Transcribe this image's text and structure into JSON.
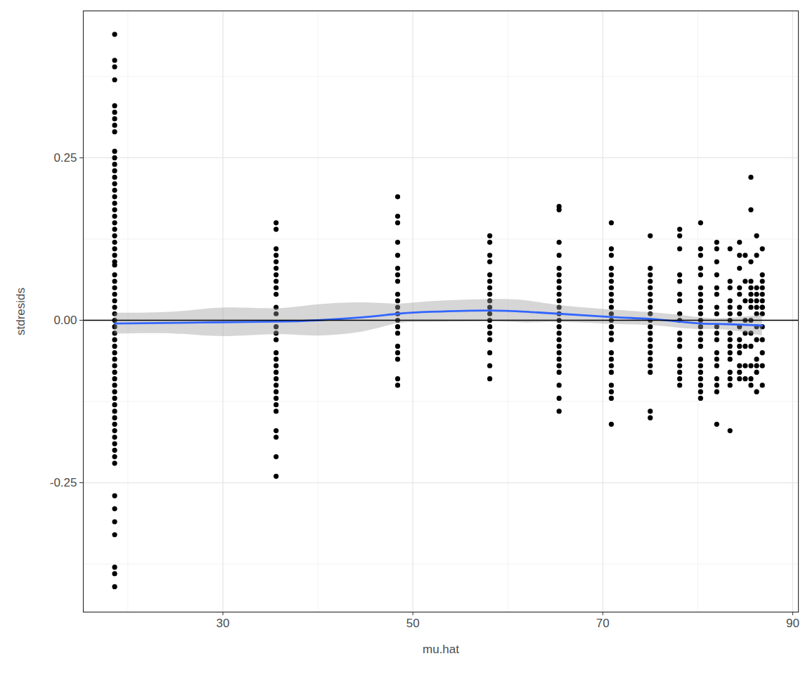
{
  "chart_data": {
    "type": "scatter",
    "x_label": "mu.hat",
    "y_label": "stdresids",
    "xlim": [
      15.3,
      90.6
    ],
    "ylim": [
      -0.449,
      0.476
    ],
    "xticks": [
      30,
      50,
      70,
      90
    ],
    "yticks": [
      -0.25,
      {
        "value": 0,
        "label": "0.00"
      },
      0.25
    ],
    "grid": true,
    "color": "#000000",
    "marker": "circle",
    "points": [
      {
        "x": 18.6,
        "values": [
          0.44,
          0.4,
          0.39,
          0.37,
          0.33,
          0.32,
          0.31,
          0.3,
          0.29,
          0.26,
          0.25,
          0.24,
          0.23,
          0.22,
          0.21,
          0.2,
          0.19,
          0.18,
          0.17,
          0.16,
          0.15,
          0.14,
          0.13,
          0.12,
          0.11,
          0.1,
          0.09,
          0.085,
          0.07,
          0.06,
          0.05,
          0.04,
          0.03,
          0.02,
          0.01,
          0.0,
          -0.01,
          -0.02,
          -0.03,
          -0.04,
          -0.05,
          -0.06,
          -0.07,
          -0.08,
          -0.09,
          -0.1,
          -0.11,
          -0.12,
          -0.13,
          -0.14,
          -0.15,
          -0.16,
          -0.17,
          -0.18,
          -0.19,
          -0.2,
          -0.21,
          -0.22,
          -0.27,
          -0.29,
          -0.31,
          -0.33,
          -0.38,
          -0.39,
          -0.41
        ]
      },
      {
        "x": 35.6,
        "values": [
          0.15,
          0.14,
          0.11,
          0.1,
          0.09,
          0.08,
          0.07,
          0.06,
          0.05,
          0.04,
          0.02,
          0.01,
          -0.01,
          -0.02,
          -0.03,
          -0.05,
          -0.06,
          -0.07,
          -0.08,
          -0.09,
          -0.1,
          -0.11,
          -0.12,
          -0.13,
          -0.14,
          -0.17,
          -0.18,
          -0.21,
          -0.24
        ]
      },
      {
        "x": 48.4,
        "values": [
          0.19,
          0.16,
          0.15,
          0.12,
          0.1,
          0.08,
          0.07,
          0.06,
          0.04,
          0.03,
          0.02,
          0.01,
          0.0,
          -0.01,
          -0.02,
          -0.04,
          -0.05,
          -0.06,
          -0.09,
          -0.1
        ]
      },
      {
        "x": 58.1,
        "values": [
          0.13,
          0.12,
          0.1,
          0.09,
          0.07,
          0.06,
          0.05,
          0.04,
          0.03,
          0.02,
          0.01,
          0.0,
          -0.01,
          -0.02,
          -0.03,
          -0.05,
          -0.07,
          -0.09
        ]
      },
      {
        "x": 65.4,
        "values": [
          0.175,
          0.17,
          0.12,
          0.1,
          0.08,
          0.07,
          0.06,
          0.05,
          0.04,
          0.03,
          0.02,
          0.01,
          0.0,
          -0.01,
          -0.02,
          -0.03,
          -0.04,
          -0.05,
          -0.06,
          -0.07,
          -0.08,
          -0.1,
          -0.12,
          -0.14
        ]
      },
      {
        "x": 70.9,
        "values": [
          0.15,
          0.11,
          0.1,
          0.08,
          0.07,
          0.06,
          0.05,
          0.04,
          0.03,
          0.02,
          0.01,
          0.0,
          -0.01,
          -0.02,
          -0.03,
          -0.05,
          -0.06,
          -0.07,
          -0.08,
          -0.1,
          -0.11,
          -0.12,
          -0.16
        ]
      },
      {
        "x": 75.0,
        "values": [
          0.13,
          0.08,
          0.07,
          0.06,
          0.05,
          0.04,
          0.03,
          0.02,
          0.01,
          0.0,
          -0.01,
          -0.02,
          -0.03,
          -0.04,
          -0.05,
          -0.06,
          -0.07,
          -0.08,
          -0.14,
          -0.15
        ]
      },
      {
        "x": 78.1,
        "values": [
          0.14,
          0.13,
          0.11,
          0.07,
          0.06,
          0.04,
          0.03,
          0.01,
          0.0,
          -0.02,
          -0.03,
          -0.04,
          -0.06,
          -0.07,
          -0.08,
          -0.09,
          -0.1
        ]
      },
      {
        "x": 80.3,
        "values": [
          0.15,
          0.11,
          0.1,
          0.08,
          0.07,
          0.05,
          0.04,
          0.03,
          0.02,
          0.01,
          0.0,
          -0.01,
          -0.02,
          -0.03,
          -0.04,
          -0.06,
          -0.07,
          -0.08,
          -0.09,
          -0.1,
          -0.11,
          -0.12
        ]
      },
      {
        "x": 82.0,
        "values": [
          0.12,
          0.11,
          0.09,
          0.07,
          0.05,
          0.04,
          0.02,
          0.01,
          -0.01,
          -0.02,
          -0.03,
          -0.05,
          -0.06,
          -0.07,
          -0.09,
          -0.1,
          -0.11,
          -0.16
        ]
      },
      {
        "x": 83.4,
        "values": [
          0.11,
          0.06,
          0.05,
          0.03,
          0.02,
          0.01,
          0.0,
          -0.02,
          -0.03,
          -0.04,
          -0.05,
          -0.06,
          -0.08,
          -0.09,
          -0.1,
          -0.17
        ]
      },
      {
        "x": 84.4,
        "values": [
          0.12,
          0.1,
          0.08,
          0.05,
          0.04,
          0.02,
          0.01,
          -0.01,
          -0.03,
          -0.04,
          -0.05,
          -0.07,
          -0.08,
          -0.09
        ]
      },
      {
        "x": 85.0,
        "values": [
          0.1,
          0.06,
          0.03,
          0.0,
          -0.02,
          -0.04,
          -0.07,
          -0.09
        ]
      },
      {
        "x": 85.6,
        "values": [
          0.22,
          0.17,
          0.09,
          0.06,
          0.05,
          0.04,
          0.03,
          0.02,
          0.0,
          -0.02,
          -0.04,
          -0.07,
          -0.09,
          -0.1
        ]
      },
      {
        "x": 86.2,
        "values": [
          0.13,
          0.1,
          0.05,
          0.04,
          0.03,
          0.02,
          0.01,
          -0.01,
          -0.03,
          -0.06,
          -0.07,
          -0.08,
          -0.11
        ]
      },
      {
        "x": 86.8,
        "values": [
          0.11,
          0.07,
          0.06,
          0.05,
          0.04,
          0.03,
          0.02,
          0.02,
          0.01,
          -0.01,
          -0.03,
          -0.05,
          -0.07,
          -0.1
        ]
      }
    ],
    "smooth": {
      "type": "line",
      "color": "#3366ff",
      "x": [
        18.6,
        25,
        30,
        35.6,
        40,
        45,
        48.4,
        52,
        58.1,
        62,
        65.4,
        70.9,
        75,
        78,
        80.3,
        83,
        86.8
      ],
      "values": [
        -0.005,
        -0.004,
        -0.003,
        -0.002,
        0.0,
        0.005,
        0.01,
        0.013,
        0.015,
        0.013,
        0.01,
        0.005,
        0.002,
        -0.002,
        -0.005,
        -0.006,
        -0.008
      ],
      "lower": [
        -0.021,
        -0.021,
        -0.025,
        -0.022,
        -0.024,
        -0.017,
        -0.005,
        -0.003,
        -0.002,
        -0.004,
        -0.003,
        -0.006,
        -0.008,
        -0.012,
        -0.014,
        -0.015,
        -0.024
      ],
      "upper": [
        0.011,
        0.013,
        0.019,
        0.018,
        0.024,
        0.027,
        0.025,
        0.029,
        0.032,
        0.03,
        0.023,
        0.016,
        0.012,
        0.008,
        0.004,
        0.003,
        0.008
      ]
    },
    "hline": 0
  }
}
